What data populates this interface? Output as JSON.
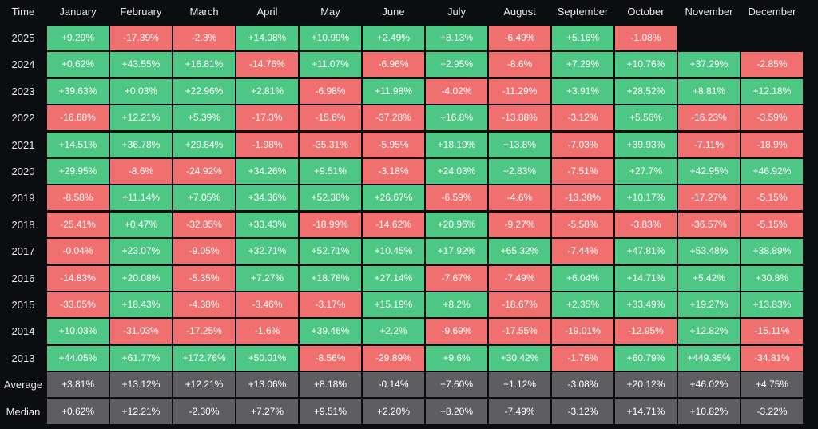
{
  "chart_data": {
    "type": "table",
    "corner_label": "Time",
    "columns": [
      "January",
      "February",
      "March",
      "April",
      "May",
      "June",
      "July",
      "August",
      "September",
      "October",
      "November",
      "December"
    ],
    "rows": [
      {
        "label": "2025",
        "values": [
          "+9.29%",
          "-17.39%",
          "-2.3%",
          "+14.08%",
          "+10.99%",
          "+2.49%",
          "+8.13%",
          "-6.49%",
          "+5.16%",
          "-1.08%",
          null,
          null
        ]
      },
      {
        "label": "2024",
        "values": [
          "+0.62%",
          "+43.55%",
          "+16.81%",
          "-14.76%",
          "+11.07%",
          "-6.96%",
          "+2.95%",
          "-8.6%",
          "+7.29%",
          "+10.76%",
          "+37.29%",
          "-2.85%"
        ]
      },
      {
        "label": "2023",
        "values": [
          "+39.63%",
          "+0.03%",
          "+22.96%",
          "+2.81%",
          "-6.98%",
          "+11.98%",
          "-4.02%",
          "-11.29%",
          "+3.91%",
          "+28.52%",
          "+8.81%",
          "+12.18%"
        ]
      },
      {
        "label": "2022",
        "values": [
          "-16.68%",
          "+12.21%",
          "+5.39%",
          "-17.3%",
          "-15.6%",
          "-37.28%",
          "+16.8%",
          "-13.88%",
          "-3.12%",
          "+5.56%",
          "-16.23%",
          "-3.59%"
        ]
      },
      {
        "label": "2021",
        "values": [
          "+14.51%",
          "+36.78%",
          "+29.84%",
          "-1.98%",
          "-35.31%",
          "-5.95%",
          "+18.19%",
          "+13.8%",
          "-7.03%",
          "+39.93%",
          "-7.11%",
          "-18.9%"
        ]
      },
      {
        "label": "2020",
        "values": [
          "+29.95%",
          "-8.6%",
          "-24.92%",
          "+34.26%",
          "+9.51%",
          "-3.18%",
          "+24.03%",
          "+2.83%",
          "-7.51%",
          "+27.7%",
          "+42.95%",
          "+46.92%"
        ]
      },
      {
        "label": "2019",
        "values": [
          "-8.58%",
          "+11.14%",
          "+7.05%",
          "+34.36%",
          "+52.38%",
          "+26.67%",
          "-6.59%",
          "-4.6%",
          "-13.38%",
          "+10.17%",
          "-17.27%",
          "-5.15%"
        ]
      },
      {
        "label": "2018",
        "values": [
          "-25.41%",
          "+0.47%",
          "-32.85%",
          "+33.43%",
          "-18.99%",
          "-14.62%",
          "+20.96%",
          "-9.27%",
          "-5.58%",
          "-3.83%",
          "-36.57%",
          "-5.15%"
        ]
      },
      {
        "label": "2017",
        "values": [
          "-0.04%",
          "+23.07%",
          "-9.05%",
          "+32.71%",
          "+52.71%",
          "+10.45%",
          "+17.92%",
          "+65.32%",
          "-7.44%",
          "+47.81%",
          "+53.48%",
          "+38.89%"
        ]
      },
      {
        "label": "2016",
        "values": [
          "-14.83%",
          "+20.08%",
          "-5.35%",
          "+7.27%",
          "+18.78%",
          "+27.14%",
          "-7.67%",
          "-7.49%",
          "+6.04%",
          "+14.71%",
          "+5.42%",
          "+30.8%"
        ]
      },
      {
        "label": "2015",
        "values": [
          "-33.05%",
          "+18.43%",
          "-4.38%",
          "-3.46%",
          "-3.17%",
          "+15.19%",
          "+8.2%",
          "-18.67%",
          "+2.35%",
          "+33.49%",
          "+19.27%",
          "+13.83%"
        ]
      },
      {
        "label": "2014",
        "values": [
          "+10.03%",
          "-31.03%",
          "-17.25%",
          "-1.6%",
          "+39.46%",
          "+2.2%",
          "-9.69%",
          "-17.55%",
          "-19.01%",
          "-12.95%",
          "+12.82%",
          "-15.11%"
        ]
      },
      {
        "label": "2013",
        "values": [
          "+44.05%",
          "+61.77%",
          "+172.76%",
          "+50.01%",
          "-8.56%",
          "-29.89%",
          "+9.6%",
          "+30.42%",
          "-1.76%",
          "+60.79%",
          "+449.35%",
          "-34.81%"
        ]
      },
      {
        "label": "Average",
        "summary": true,
        "values": [
          "+3.81%",
          "+13.12%",
          "+12.21%",
          "+13.06%",
          "+8.18%",
          "-0.14%",
          "+7.60%",
          "+1.12%",
          "-3.08%",
          "+20.12%",
          "+46.02%",
          "+4.75%"
        ]
      },
      {
        "label": "Median",
        "summary": true,
        "values": [
          "+0.62%",
          "+12.21%",
          "-2.30%",
          "+7.27%",
          "+9.51%",
          "+2.20%",
          "+8.20%",
          "-7.49%",
          "-3.12%",
          "+14.71%",
          "+10.82%",
          "-3.22%"
        ]
      }
    ],
    "colors": {
      "positive": "#4ec784",
      "negative": "#f07070",
      "summary": "#5e5e62",
      "background": "#0c0d10",
      "text": "#e8e8e8"
    }
  }
}
